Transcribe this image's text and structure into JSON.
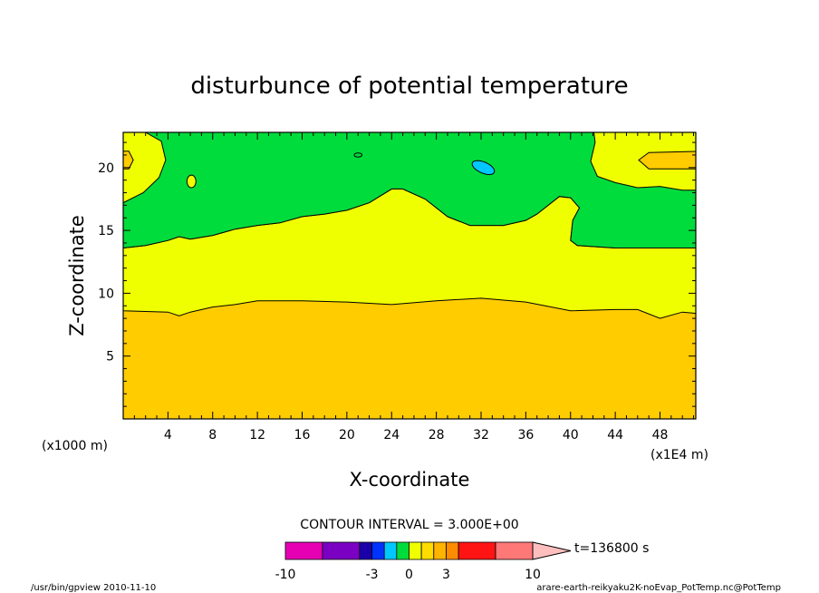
{
  "chart_data": {
    "type": "contour-filled",
    "title": "disturbunce of potential temperature",
    "xlabel": "X-coordinate",
    "ylabel": "Z-coordinate",
    "x_unit": "(x1E4 m)",
    "y_unit": "(x1000 m)",
    "xlim": [
      0,
      51.2
    ],
    "ylim": [
      0,
      22.8
    ],
    "x_ticks": [
      4,
      8,
      12,
      16,
      20,
      24,
      28,
      32,
      36,
      40,
      44,
      48
    ],
    "y_ticks": [
      5,
      10,
      15,
      20
    ],
    "contour_interval_label": "CONTOUR INTERVAL = 3.000E+00",
    "time_label": "t=136800 s",
    "colorbar": {
      "tick_labels": [
        "-10",
        "-3",
        "0",
        "3",
        "10"
      ],
      "tick_values": [
        -10,
        -3,
        0,
        3,
        10
      ],
      "bins": [
        {
          "from": -10,
          "to": -7,
          "color": "#e600b4"
        },
        {
          "from": -7,
          "to": -4,
          "color": "#7a00c2"
        },
        {
          "from": -4,
          "to": -3,
          "color": "#1a00a8"
        },
        {
          "from": -3,
          "to": -2,
          "color": "#0032ff"
        },
        {
          "from": -2,
          "to": -1,
          "color": "#00c8ff"
        },
        {
          "from": -1,
          "to": 0,
          "color": "#00dc3c"
        },
        {
          "from": 0,
          "to": 1,
          "color": "#f0ff00"
        },
        {
          "from": 1,
          "to": 2,
          "color": "#ffdc00"
        },
        {
          "from": 2,
          "to": 3,
          "color": "#ffb400"
        },
        {
          "from": 3,
          "to": 4,
          "color": "#ff8c00"
        },
        {
          "from": 4,
          "to": 7,
          "color": "#ff1414"
        },
        {
          "from": 7,
          "to": 10,
          "color": "#ff7878"
        },
        {
          "from": 10,
          "to": 13,
          "color": "#ffbebe"
        }
      ]
    },
    "regions": [
      {
        "name": "lower-layer",
        "color": "#ffcc00",
        "value_range": [
          1,
          2
        ],
        "top_boundary": [
          [
            0,
            8.6
          ],
          [
            4,
            8.5
          ],
          [
            5,
            8.2
          ],
          [
            6,
            8.5
          ],
          [
            8,
            8.9
          ],
          [
            10,
            9.1
          ],
          [
            12,
            9.4
          ],
          [
            16,
            9.4
          ],
          [
            20,
            9.3
          ],
          [
            24,
            9.1
          ],
          [
            28,
            9.4
          ],
          [
            32,
            9.6
          ],
          [
            36,
            9.3
          ],
          [
            40,
            8.6
          ],
          [
            44,
            8.7
          ],
          [
            46,
            8.7
          ],
          [
            48,
            8.0
          ],
          [
            50,
            8.5
          ],
          [
            51.2,
            8.4
          ]
        ]
      },
      {
        "name": "middle-layer",
        "color": "#f0ff00",
        "value_range": [
          0,
          1
        ],
        "top_boundary": [
          [
            0,
            13.6
          ],
          [
            2,
            13.8
          ],
          [
            4,
            14.2
          ],
          [
            5,
            14.5
          ],
          [
            6,
            14.3
          ],
          [
            8,
            14.6
          ],
          [
            10,
            15.1
          ],
          [
            12,
            15.4
          ],
          [
            14,
            15.6
          ],
          [
            16,
            16.1
          ],
          [
            18,
            16.3
          ],
          [
            20,
            16.6
          ],
          [
            22,
            17.2
          ],
          [
            24,
            18.3
          ],
          [
            25,
            18.3
          ],
          [
            27,
            17.5
          ],
          [
            29,
            16.1
          ],
          [
            31,
            15.4
          ],
          [
            34,
            15.4
          ],
          [
            36,
            15.8
          ],
          [
            37,
            16.3
          ],
          [
            38,
            17.0
          ],
          [
            39,
            17.7
          ],
          [
            40,
            17.6
          ],
          [
            40.8,
            16.8
          ],
          [
            40.2,
            15.8
          ],
          [
            40.0,
            14.2
          ],
          [
            40.6,
            13.8
          ],
          [
            44,
            13.6
          ],
          [
            48,
            13.6
          ],
          [
            51.2,
            13.6
          ]
        ]
      },
      {
        "name": "upper-layer",
        "color": "#00dc3c",
        "value_range": [
          -1,
          0
        ]
      },
      {
        "name": "upper-left-warm",
        "color": "#f0ff00",
        "value_range": [
          0,
          1
        ]
      },
      {
        "name": "upper-right-warm",
        "color": "#f0ff00",
        "value_range": [
          0,
          1
        ]
      },
      {
        "name": "left-edge-core",
        "color": "#ffcc00",
        "value_range": [
          1,
          2
        ],
        "center": [
          0.3,
          20.6
        ]
      },
      {
        "name": "right-core",
        "color": "#ffcc00",
        "value_range": [
          1,
          2
        ],
        "center": [
          49,
          20.6
        ]
      },
      {
        "name": "small-warm-cell",
        "color": "#f0ff00",
        "value_range": [
          0,
          1
        ],
        "center": [
          6.1,
          18.9
        ]
      },
      {
        "name": "small-cold-cell",
        "color": "#00c8ff",
        "value_range": [
          -2,
          -1
        ],
        "center": [
          32.2,
          20.0
        ]
      },
      {
        "name": "tiny-green-cell",
        "color": "#00dc3c",
        "value_range": [
          -1,
          0
        ],
        "center": [
          21,
          21.0
        ]
      }
    ]
  },
  "footer": {
    "left": "/usr/bin/gpview   2010-11-10",
    "right": "arare-earth-reikyaku2K-noEvap_PotTemp.nc@PotTemp"
  }
}
